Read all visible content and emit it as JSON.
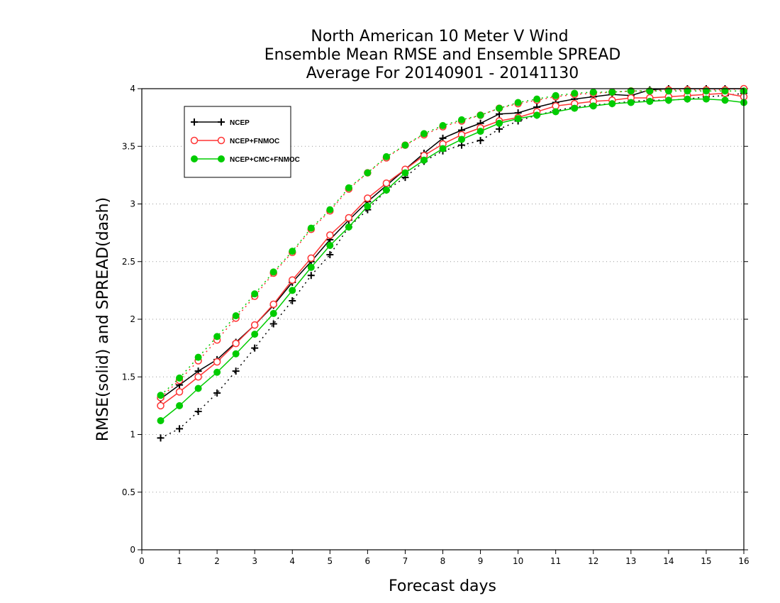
{
  "chart_data": {
    "type": "line",
    "title_lines": [
      "North American 10 Meter V Wind",
      "Ensemble Mean RMSE and Ensemble SPREAD",
      "Average For 20140901 - 20141130"
    ],
    "xlabel": "Forecast days",
    "ylabel": "RMSE(solid) and SPREAD(dash)",
    "xlim": [
      0,
      16
    ],
    "ylim": [
      0,
      4
    ],
    "xticks": [
      0,
      1,
      2,
      3,
      4,
      5,
      6,
      7,
      8,
      9,
      10,
      11,
      12,
      13,
      14,
      15,
      16
    ],
    "yticks": [
      0,
      0.5,
      1,
      1.5,
      2,
      2.5,
      3,
      3.5,
      4
    ],
    "ytick_labels": [
      "0",
      "0.5",
      "1",
      "1.5",
      "2",
      "2.5",
      "3",
      "3.5",
      "4"
    ],
    "grid": "horizontal dotted",
    "legend_position": "top-left",
    "x": [
      0.5,
      1,
      1.5,
      2,
      2.5,
      3,
      3.5,
      4,
      4.5,
      5,
      5.5,
      6,
      6.5,
      7,
      7.5,
      8,
      8.5,
      9,
      9.5,
      10,
      10.5,
      11,
      11.5,
      12,
      12.5,
      13,
      13.5,
      14,
      14.5,
      15,
      15.5,
      16
    ],
    "series": [
      {
        "name": "NCEP",
        "color": "#000000",
        "marker": "plus",
        "rmse": [
          1.31,
          1.43,
          1.55,
          1.65,
          1.8,
          1.95,
          2.12,
          2.32,
          2.5,
          2.69,
          2.86,
          3.02,
          3.16,
          3.3,
          3.44,
          3.57,
          3.64,
          3.7,
          3.78,
          3.79,
          3.84,
          3.88,
          3.91,
          3.93,
          3.95,
          3.94,
          3.99,
          4.0,
          4.0,
          4.0,
          4.0,
          4.0
        ],
        "spread": [
          0.97,
          1.05,
          1.2,
          1.36,
          1.55,
          1.75,
          1.96,
          2.16,
          2.38,
          2.56,
          2.8,
          2.95,
          3.12,
          3.23,
          3.37,
          3.46,
          3.51,
          3.55,
          3.65,
          3.72,
          3.77,
          3.81,
          3.84,
          3.86,
          3.87,
          3.89,
          3.9,
          3.9,
          3.91,
          3.93,
          3.94,
          3.96
        ]
      },
      {
        "name": "NCEP+FNMOC",
        "color": "#ff3333",
        "marker": "open-circle",
        "rmse": [
          1.25,
          1.37,
          1.5,
          1.63,
          1.79,
          1.95,
          2.13,
          2.34,
          2.53,
          2.73,
          2.88,
          3.05,
          3.18,
          3.3,
          3.42,
          3.52,
          3.6,
          3.66,
          3.72,
          3.75,
          3.8,
          3.85,
          3.87,
          3.89,
          3.9,
          3.92,
          3.92,
          3.93,
          3.94,
          3.95,
          3.96,
          3.93
        ],
        "spread": [
          1.32,
          1.47,
          1.64,
          1.82,
          2.01,
          2.2,
          2.4,
          2.58,
          2.78,
          2.94,
          3.13,
          3.27,
          3.4,
          3.51,
          3.6,
          3.67,
          3.72,
          3.77,
          3.83,
          3.87,
          3.9,
          3.93,
          3.95,
          3.96,
          3.97,
          3.98,
          3.98,
          3.99,
          3.99,
          3.99,
          3.99,
          4.0
        ]
      },
      {
        "name": "NCEP+CMC+FNMOC",
        "color": "#00cc00",
        "marker": "filled-circle",
        "rmse": [
          1.12,
          1.25,
          1.4,
          1.54,
          1.7,
          1.87,
          2.05,
          2.25,
          2.45,
          2.64,
          2.8,
          2.98,
          3.12,
          3.27,
          3.38,
          3.48,
          3.56,
          3.63,
          3.7,
          3.74,
          3.77,
          3.8,
          3.83,
          3.85,
          3.87,
          3.88,
          3.89,
          3.9,
          3.91,
          3.91,
          3.9,
          3.88
        ],
        "spread": [
          1.34,
          1.49,
          1.67,
          1.85,
          2.03,
          2.22,
          2.41,
          2.59,
          2.79,
          2.95,
          3.14,
          3.27,
          3.41,
          3.51,
          3.61,
          3.68,
          3.73,
          3.77,
          3.83,
          3.88,
          3.91,
          3.94,
          3.96,
          3.97,
          3.97,
          3.98,
          3.98,
          3.98,
          3.98,
          3.98,
          3.98,
          3.98
        ]
      }
    ]
  }
}
